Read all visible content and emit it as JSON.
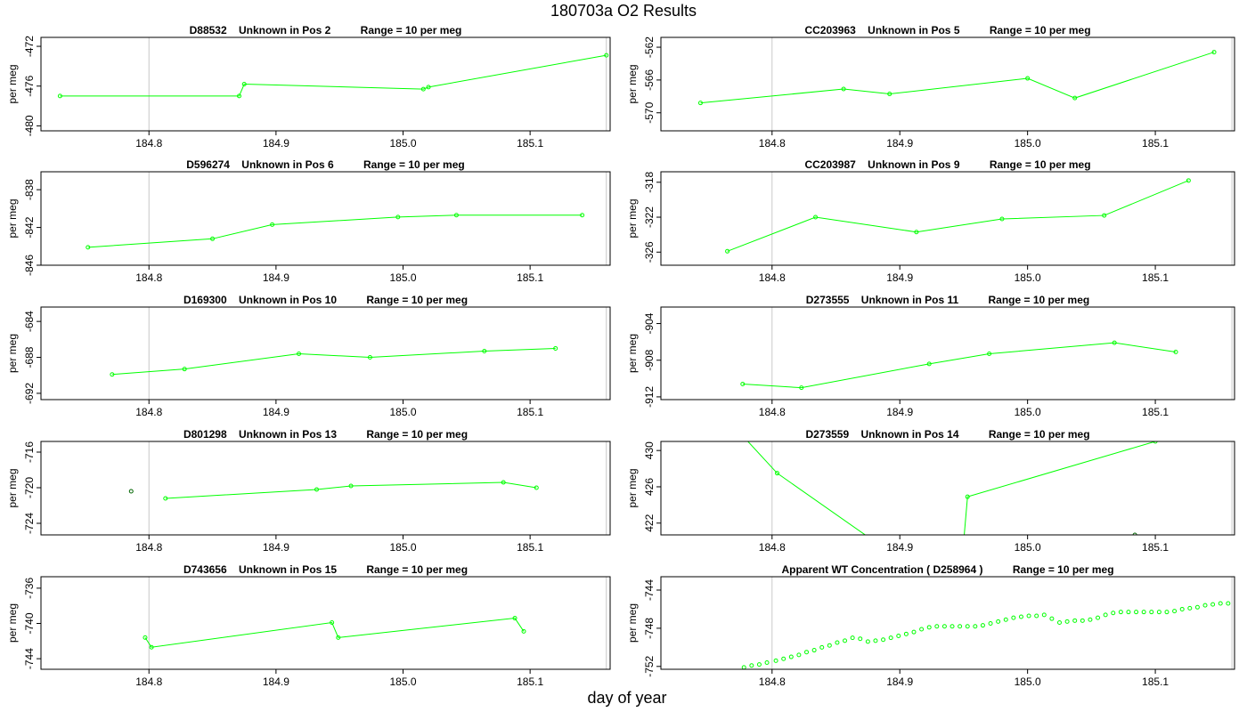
{
  "page": {
    "title": "180703a  O2 Results",
    "xlabel": "day of year"
  },
  "chart_data": [
    {
      "type": "line",
      "title": "D88532    Unknown in Pos 2          Range = 10 per meg",
      "xlabel": "",
      "ylabel": "per meg",
      "xlim": [
        184.715,
        185.163
      ],
      "ylim": [
        -480.5,
        -471.1
      ],
      "xticks": [
        184.8,
        184.9,
        185.0,
        185.1
      ],
      "xtick_labels": [
        "184.8",
        "184.9",
        "185.0",
        "185.1"
      ],
      "yticks": [
        -472,
        -476,
        -480
      ],
      "ytick_labels": [
        "-472",
        "-476",
        "-480"
      ],
      "vlines": [
        184.8,
        185.16
      ],
      "series": [
        {
          "color": "#00ff00",
          "style": "line-points",
          "x": [
            184.73,
            184.871,
            184.875,
            185.016,
            185.02,
            185.16
          ],
          "y": [
            -477.0,
            -477.0,
            -475.8,
            -476.3,
            -476.1,
            -472.9
          ]
        }
      ]
    },
    {
      "type": "line",
      "title": "CC203963    Unknown in Pos 5          Range = 10 per meg",
      "xlabel": "",
      "ylabel": "per meg",
      "xlim": [
        184.713,
        185.162
      ],
      "ylim": [
        -572.2,
        -560.8
      ],
      "xticks": [
        184.8,
        184.9,
        185.0,
        185.1
      ],
      "xtick_labels": [
        "184.8",
        "184.9",
        "185.0",
        "185.1"
      ],
      "yticks": [
        -562,
        -566,
        -570
      ],
      "ytick_labels": [
        "-562",
        "-566",
        "-570"
      ],
      "vlines": [
        184.8,
        185.16
      ],
      "series": [
        {
          "color": "#00ff00",
          "style": "line-points",
          "x": [
            184.744,
            184.856,
            184.892,
            185.0,
            185.037,
            185.146
          ],
          "y": [
            -568.8,
            -567.1,
            -567.7,
            -565.8,
            -568.2,
            -562.6
          ]
        }
      ]
    },
    {
      "type": "line",
      "title": "D596274    Unknown in Pos 6          Range = 10 per meg",
      "xlabel": "",
      "ylabel": "per meg",
      "xlim": [
        184.715,
        185.163
      ],
      "ylim": [
        -846.0,
        -836.1
      ],
      "xticks": [
        184.8,
        184.9,
        185.0,
        185.1
      ],
      "xtick_labels": [
        "184.8",
        "184.9",
        "185.0",
        "185.1"
      ],
      "yticks": [
        -838,
        -842,
        -846
      ],
      "ytick_labels": [
        "-838",
        "-842",
        "-846"
      ],
      "vlines": [
        184.8,
        185.16
      ],
      "series": [
        {
          "color": "#00ff00",
          "style": "line-points",
          "x": [
            184.752,
            184.85,
            184.897,
            184.996,
            185.042,
            185.141
          ],
          "y": [
            -844.1,
            -843.2,
            -841.7,
            -840.9,
            -840.7,
            -840.7
          ]
        }
      ]
    },
    {
      "type": "line",
      "title": "CC203987    Unknown in Pos 9          Range = 10 per meg",
      "xlabel": "",
      "ylabel": "per meg",
      "xlim": [
        184.713,
        185.162
      ],
      "ylim": [
        -327.5,
        -316.8
      ],
      "xticks": [
        184.8,
        184.9,
        185.0,
        185.1
      ],
      "xtick_labels": [
        "184.8",
        "184.9",
        "185.0",
        "185.1"
      ],
      "yticks": [
        -318,
        -322,
        -326
      ],
      "ytick_labels": [
        "-318",
        "-322",
        "-326"
      ],
      "vlines": [
        184.8,
        185.16
      ],
      "series": [
        {
          "color": "#00ff00",
          "style": "line-points",
          "x": [
            184.765,
            184.834,
            184.913,
            184.98,
            185.06,
            185.126
          ],
          "y": [
            -325.9,
            -322.0,
            -323.7,
            -322.2,
            -321.8,
            -317.8
          ]
        }
      ]
    },
    {
      "type": "line",
      "title": "D169300    Unknown in Pos 10          Range = 10 per meg",
      "xlabel": "",
      "ylabel": "per meg",
      "xlim": [
        184.715,
        185.163
      ],
      "ylim": [
        -692.7,
        -682.4
      ],
      "xticks": [
        184.8,
        184.9,
        185.0,
        185.1
      ],
      "xtick_labels": [
        "184.8",
        "184.9",
        "185.0",
        "185.1"
      ],
      "yticks": [
        -684,
        -688,
        -692
      ],
      "ytick_labels": [
        "-684",
        "-688",
        "-692"
      ],
      "vlines": [
        184.8,
        185.16
      ],
      "series": [
        {
          "color": "#00ff00",
          "style": "line-points",
          "x": [
            184.771,
            184.828,
            184.918,
            184.974,
            185.064,
            185.12
          ],
          "y": [
            -689.9,
            -689.3,
            -687.6,
            -688.0,
            -687.3,
            -687.0
          ]
        }
      ]
    },
    {
      "type": "line",
      "title": "D273555    Unknown in Pos 11          Range = 10 per meg",
      "xlabel": "",
      "ylabel": "per meg",
      "xlim": [
        184.713,
        185.162
      ],
      "ylim": [
        -912.3,
        -902.2
      ],
      "xticks": [
        184.8,
        184.9,
        185.0,
        185.1
      ],
      "xtick_labels": [
        "184.8",
        "184.9",
        "185.0",
        "185.1"
      ],
      "yticks": [
        -904,
        -908,
        -912
      ],
      "ytick_labels": [
        "-904",
        "-908",
        "-912"
      ],
      "vlines": [
        184.8,
        185.16
      ],
      "series": [
        {
          "color": "#00ff00",
          "style": "line-points",
          "x": [
            184.777,
            184.823,
            184.923,
            184.97,
            185.068,
            185.116
          ],
          "y": [
            -910.6,
            -911.0,
            -908.4,
            -907.3,
            -906.1,
            -907.1
          ]
        }
      ]
    },
    {
      "type": "line",
      "title": "D801298    Unknown in Pos 13          Range = 10 per meg",
      "xlabel": "",
      "ylabel": "per meg",
      "xlim": [
        184.715,
        185.163
      ],
      "ylim": [
        -725.3,
        -714.8
      ],
      "xticks": [
        184.8,
        184.9,
        185.0,
        185.1
      ],
      "xtick_labels": [
        "184.8",
        "184.9",
        "185.0",
        "185.1"
      ],
      "yticks": [
        -716,
        -720,
        -724
      ],
      "ytick_labels": [
        "-716",
        "-720",
        "-724"
      ],
      "vlines": [
        184.8,
        185.16
      ],
      "series": [
        {
          "color": "#00ff00",
          "style": "line-points",
          "x": [
            184.813,
            184.932,
            184.959,
            185.079,
            185.105
          ],
          "y": [
            -721.2,
            -720.2,
            -719.8,
            -719.4,
            -720.0
          ]
        },
        {
          "color": "#006400",
          "style": "points",
          "x": [
            184.786
          ],
          "y": [
            -720.4
          ]
        }
      ]
    },
    {
      "type": "line",
      "title": "D273559    Unknown in Pos 14          Range = 10 per meg",
      "xlabel": "",
      "ylabel": "per meg",
      "xlim": [
        184.713,
        185.162
      ],
      "ylim": [
        420.7,
        431.0
      ],
      "xticks": [
        184.8,
        184.9,
        185.0,
        185.1
      ],
      "xtick_labels": [
        "184.8",
        "184.9",
        "185.0",
        "185.1"
      ],
      "yticks": [
        422,
        426,
        430
      ],
      "ytick_labels": [
        "422",
        "426",
        "430"
      ],
      "vlines": [
        184.8,
        185.16
      ],
      "series": [
        {
          "color": "#00ff00",
          "style": "line-points",
          "x": [
            184.768,
            184.804,
            184.88,
            184.95,
            184.953,
            185.1
          ],
          "y": [
            433.0,
            427.5,
            420.0,
            420.0,
            424.9,
            431.0
          ]
        },
        {
          "color": "#006400",
          "style": "points",
          "x": [
            185.084
          ],
          "y": [
            420.7
          ]
        }
      ]
    },
    {
      "type": "line",
      "title": "D743656    Unknown in Pos 15          Range = 10 per meg",
      "xlabel": "",
      "ylabel": "per meg",
      "xlim": [
        184.715,
        185.163
      ],
      "ylim": [
        -745.2,
        -734.7
      ],
      "xticks": [
        184.8,
        184.9,
        185.0,
        185.1
      ],
      "xtick_labels": [
        "184.8",
        "184.9",
        "185.0",
        "185.1"
      ],
      "yticks": [
        -736,
        -740,
        -744
      ],
      "ytick_labels": [
        "-736",
        "-740",
        "-744"
      ],
      "vlines": [
        184.8,
        185.16
      ],
      "series": [
        {
          "color": "#00ff00",
          "style": "line-points",
          "x": [
            184.797,
            184.802,
            184.944,
            184.949,
            185.088,
            185.095
          ],
          "y": [
            -741.6,
            -742.7,
            -739.9,
            -741.6,
            -739.4,
            -740.9
          ]
        }
      ]
    },
    {
      "type": "scatter",
      "title": "Apparent WT Concentration ( D258964 )          Range = 10 per meg",
      "xlabel": "",
      "ylabel": "per meg",
      "xlim": [
        184.713,
        185.162
      ],
      "ylim": [
        -752.3,
        -742.6
      ],
      "xticks": [
        184.8,
        184.9,
        185.0,
        185.1
      ],
      "xtick_labels": [
        "184.8",
        "184.9",
        "185.0",
        "185.1"
      ],
      "yticks": [
        -744,
        -748,
        -752
      ],
      "ytick_labels": [
        "-744",
        "-748",
        "-752"
      ],
      "vlines": [
        184.8,
        185.16
      ],
      "series": [
        {
          "color": "#00ff00",
          "style": "points",
          "x": [
            184.778,
            184.784,
            184.79,
            184.796,
            184.803,
            184.809,
            184.815,
            184.821,
            184.827,
            184.833,
            184.839,
            184.845,
            184.851,
            184.857,
            184.863,
            184.869,
            184.875,
            184.881,
            184.887,
            184.893,
            184.899,
            184.905,
            184.911,
            184.917,
            184.923,
            184.929,
            184.935,
            184.941,
            184.947,
            184.953,
            184.959,
            184.965,
            184.971,
            184.977,
            184.983,
            184.989,
            184.995,
            185.001,
            185.007,
            185.013,
            185.019,
            185.025,
            185.031,
            185.037,
            185.043,
            185.049,
            185.055,
            185.061,
            185.067,
            185.073,
            185.079,
            185.085,
            185.091,
            185.097,
            185.103,
            185.109,
            185.115,
            185.121,
            185.127,
            185.133,
            185.139,
            185.145,
            185.151,
            185.157
          ],
          "y": [
            -752.1,
            -751.9,
            -751.8,
            -751.6,
            -751.4,
            -751.2,
            -751.0,
            -750.8,
            -750.5,
            -750.3,
            -750.0,
            -749.8,
            -749.5,
            -749.3,
            -749.0,
            -749.1,
            -749.4,
            -749.3,
            -749.2,
            -749.0,
            -748.8,
            -748.6,
            -748.4,
            -748.1,
            -747.9,
            -747.8,
            -747.8,
            -747.8,
            -747.8,
            -747.8,
            -747.8,
            -747.7,
            -747.5,
            -747.3,
            -747.1,
            -746.9,
            -746.8,
            -746.7,
            -746.7,
            -746.6,
            -747.0,
            -747.4,
            -747.3,
            -747.2,
            -747.2,
            -747.1,
            -746.9,
            -746.6,
            -746.4,
            -746.3,
            -746.3,
            -746.3,
            -746.3,
            -746.3,
            -746.3,
            -746.3,
            -746.2,
            -746.0,
            -745.9,
            -745.8,
            -745.6,
            -745.5,
            -745.4,
            -745.4
          ]
        }
      ]
    }
  ]
}
